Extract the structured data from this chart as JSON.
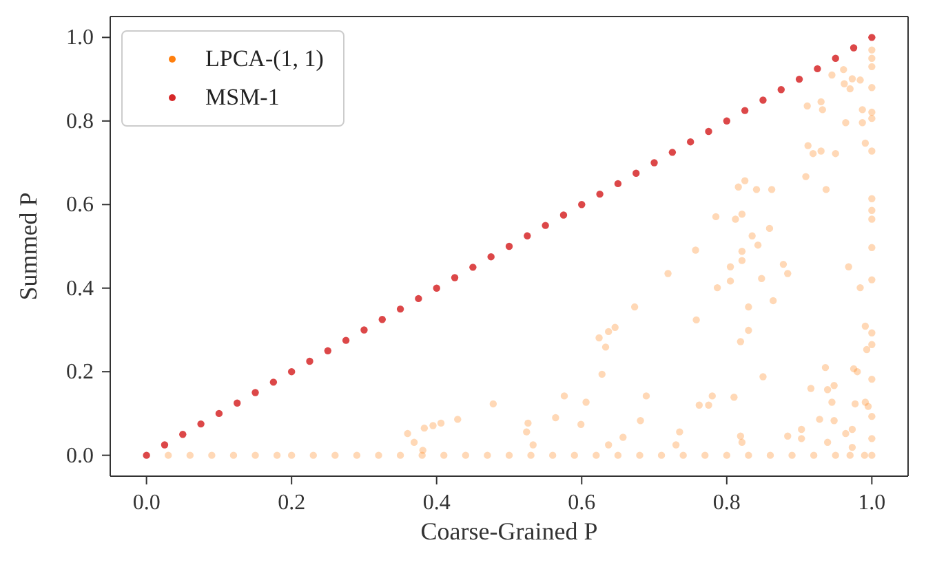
{
  "chart_data": {
    "type": "scatter",
    "xlabel": "Coarse-Grained P",
    "ylabel": "Summed P",
    "xlim": [
      -0.05,
      1.05
    ],
    "ylim": [
      -0.05,
      1.05
    ],
    "xticks": [
      {
        "value": 0,
        "label": "0.0"
      },
      {
        "value": 0.2,
        "label": "0.2"
      },
      {
        "value": 0.4,
        "label": "0.4"
      },
      {
        "value": 0.6,
        "label": "0.6"
      },
      {
        "value": 0.8,
        "label": "0.8"
      },
      {
        "value": 1,
        "label": "1.0"
      }
    ],
    "yticks": [
      {
        "value": 0,
        "label": "0.0"
      },
      {
        "value": 0.2,
        "label": "0.2"
      },
      {
        "value": 0.4,
        "label": "0.4"
      },
      {
        "value": 0.6,
        "label": "0.6"
      },
      {
        "value": 0.8,
        "label": "0.8"
      },
      {
        "value": 1,
        "label": "1.0"
      }
    ],
    "legend": "top left",
    "marker": "circle",
    "series": [
      {
        "name": "LPCA-(1, 1)",
        "color": "#ff7f0e",
        "x": [
          0.03,
          0.06,
          0.09,
          0.12,
          0.15,
          0.18,
          0.2,
          0.23,
          0.26,
          0.29,
          0.32,
          0.35,
          0.38,
          0.41,
          0.44,
          0.47,
          0.5,
          0.53,
          0.56,
          0.59,
          0.62,
          0.65,
          0.68,
          0.71,
          0.74,
          0.77,
          0.8,
          0.83,
          0.86,
          0.89,
          0.92,
          0.95,
          0.97,
          0.99,
          1.0,
          0.673,
          0.624,
          0.633,
          0.637,
          0.646,
          0.628,
          0.576,
          0.606,
          0.478,
          0.564,
          0.599,
          0.689,
          0.681,
          0.657,
          0.429,
          0.406,
          0.395,
          0.383,
          0.36,
          0.369,
          0.381,
          0.526,
          0.524,
          0.533,
          0.637,
          0.911,
          0.93,
          0.932,
          0.912,
          0.919,
          0.93,
          0.95,
          0.909,
          0.937,
          0.816,
          0.825,
          0.841,
          0.862,
          0.785,
          0.812,
          0.821,
          0.835,
          0.859,
          0.843,
          0.757,
          0.821,
          0.821,
          0.719,
          0.805,
          0.805,
          0.787,
          0.848,
          0.878,
          0.884,
          0.968,
          0.984,
          0.83,
          0.864,
          0.758,
          0.83,
          0.819,
          0.85,
          0.916,
          0.936,
          0.939,
          0.948,
          0.945,
          0.975,
          0.98,
          0.78,
          0.762,
          0.775,
          0.81,
          0.928,
          0.948,
          0.903,
          0.903,
          0.735,
          0.73,
          0.819,
          0.821,
          0.884,
          0.939,
          0.964,
          0.973,
          0.973,
          0.991,
          0.993,
          0.977,
          0.995,
          0.991,
          0.984,
          0.987,
          0.987,
          0.991,
          0.964,
          0.961,
          0.97,
          0.945,
          0.962,
          0.973,
          1.0,
          1.0,
          1.0,
          1.0,
          1.0,
          1.0,
          1.0,
          1.0,
          1.0,
          1.0,
          1.0,
          1.0,
          1.0,
          1.0,
          1.0,
          1.0,
          1.0
        ],
        "values": [
          0,
          0,
          0,
          0,
          0,
          0,
          0,
          0,
          0,
          0,
          0,
          0,
          0,
          0,
          0,
          0,
          0,
          0,
          0,
          0,
          0,
          0,
          0,
          0,
          0,
          0,
          0,
          0,
          0,
          0,
          0,
          0,
          0,
          0,
          0,
          0.355,
          0.281,
          0.259,
          0.296,
          0.306,
          0.194,
          0.142,
          0.127,
          0.123,
          0.09,
          0.074,
          0.142,
          0.083,
          0.043,
          0.086,
          0.077,
          0.071,
          0.065,
          0.052,
          0.031,
          0.012,
          0.077,
          0.056,
          0.025,
          0.025,
          0.836,
          0.846,
          0.827,
          0.741,
          0.722,
          0.728,
          0.722,
          0.667,
          0.636,
          0.642,
          0.657,
          0.636,
          0.636,
          0.571,
          0.565,
          0.577,
          0.525,
          0.543,
          0.503,
          0.491,
          0.488,
          0.466,
          0.435,
          0.451,
          0.417,
          0.401,
          0.423,
          0.457,
          0.435,
          0.451,
          0.401,
          0.355,
          0.37,
          0.324,
          0.299,
          0.272,
          0.188,
          0.16,
          0.21,
          0.157,
          0.167,
          0.127,
          0.207,
          0.2,
          0.142,
          0.12,
          0.12,
          0.139,
          0.086,
          0.083,
          0.062,
          0.04,
          0.056,
          0.025,
          0.046,
          0.031,
          0.046,
          0.031,
          0.052,
          0.062,
          0.019,
          0.309,
          0.253,
          0.123,
          0.117,
          0.127,
          0.898,
          0.827,
          0.796,
          0.747,
          0.796,
          0.923,
          0.877,
          0.91,
          0.889,
          0.901,
          0.88,
          0.821,
          0.806,
          0.728,
          0.614,
          0.586,
          0.565,
          0.497,
          0.42,
          0.293,
          0.265,
          0.182,
          0.093,
          0.04,
          0.97,
          0.95,
          0.93
        ]
      },
      {
        "name": "MSM-1",
        "color": "#d62728",
        "x": [
          0,
          0.025,
          0.05,
          0.075,
          0.1,
          0.125,
          0.15,
          0.175,
          0.2,
          0.225,
          0.25,
          0.275,
          0.3,
          0.325,
          0.35,
          0.375,
          0.4,
          0.425,
          0.45,
          0.475,
          0.5,
          0.525,
          0.55,
          0.575,
          0.6,
          0.625,
          0.65,
          0.675,
          0.7,
          0.725,
          0.75,
          0.775,
          0.8,
          0.825,
          0.85,
          0.875,
          0.9,
          0.925,
          0.95,
          0.975,
          1.0
        ],
        "values": [
          0,
          0.025,
          0.05,
          0.075,
          0.1,
          0.125,
          0.15,
          0.175,
          0.2,
          0.225,
          0.25,
          0.275,
          0.3,
          0.325,
          0.35,
          0.375,
          0.4,
          0.425,
          0.45,
          0.475,
          0.5,
          0.525,
          0.55,
          0.575,
          0.6,
          0.625,
          0.65,
          0.675,
          0.7,
          0.725,
          0.75,
          0.775,
          0.8,
          0.825,
          0.85,
          0.875,
          0.9,
          0.925,
          0.95,
          0.975,
          1.0
        ]
      }
    ]
  }
}
